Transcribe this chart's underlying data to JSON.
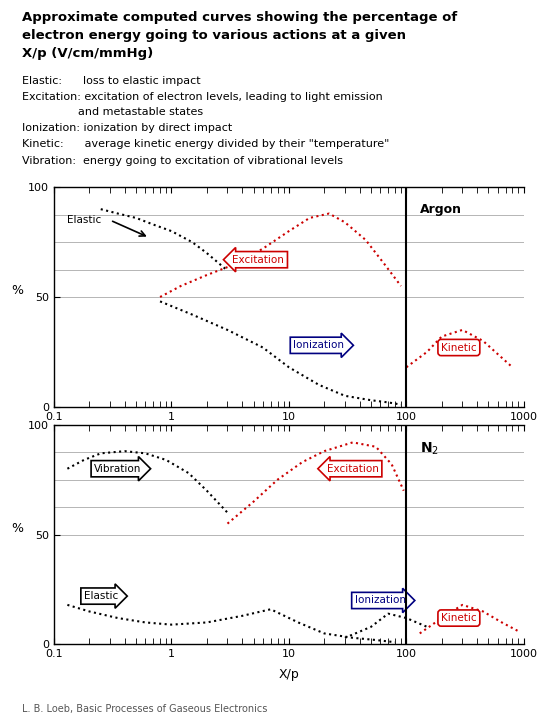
{
  "title_line1": "Approximate computed curves showing the percentage of",
  "title_line2": "electron energy going to various actions at a given",
  "title_line3": "X/p (V/cm/mmHg)",
  "legend_lines": [
    "Elastic:      loss to elastic impact",
    "Excitation: excitation of electron levels, leading to light emission",
    "                and metastable states",
    "Ionization: ionization by direct impact",
    "Kinetic:      average kinetic energy divided by their \"temperature\"",
    "Vibration:  energy going to excitation of vibrational levels"
  ],
  "ylabel": "%",
  "xlabel": "X/p",
  "footer": "L. B. Loeb, Basic Processes of Gaseous Electronics",
  "argon_label": "Argon",
  "n2_label": "N$_2$",
  "bg_color": "#ffffff",
  "black": "#000000",
  "red": "#cc0000",
  "blue": "#000080",
  "gray": "#aaaaaa",
  "argon_elastic_x": [
    0.25,
    0.35,
    0.5,
    0.7,
    1.0,
    1.5,
    2.0,
    3.0
  ],
  "argon_elastic_y": [
    90,
    88,
    86,
    83,
    80,
    75,
    70,
    62
  ],
  "argon_exc_x": [
    0.8,
    1.2,
    2.0,
    3.5,
    6.0,
    10.0,
    15.0,
    22.0,
    30.0,
    45.0,
    65.0,
    90.0
  ],
  "argon_exc_y": [
    50,
    55,
    60,
    65,
    72,
    80,
    86,
    88,
    84,
    76,
    65,
    55
  ],
  "argon_ion_x": [
    0.8,
    1.5,
    3.0,
    6.0,
    10.0,
    18.0,
    30.0,
    50.0,
    70.0,
    90.0
  ],
  "argon_ion_y": [
    48,
    42,
    35,
    27,
    18,
    10,
    5,
    3,
    2,
    1
  ],
  "argon_kin_x": [
    100,
    150,
    200,
    300,
    450,
    600,
    800
  ],
  "argon_kin_y": [
    18,
    25,
    32,
    35,
    30,
    24,
    18
  ],
  "n2_vib_x": [
    0.13,
    0.18,
    0.25,
    0.4,
    0.6,
    0.9,
    1.4,
    2.0,
    3.0
  ],
  "n2_vib_y": [
    80,
    84,
    87,
    88,
    87,
    84,
    78,
    70,
    60
  ],
  "n2_exc_x": [
    3.0,
    5.0,
    8.0,
    13.0,
    20.0,
    35.0,
    55.0,
    75.0,
    95.0
  ],
  "n2_exc_y": [
    55,
    65,
    75,
    83,
    88,
    92,
    90,
    82,
    70
  ],
  "n2_elas_x": [
    0.13,
    0.2,
    0.35,
    0.6,
    1.0,
    2.0,
    4.0,
    7.0,
    12.0,
    20.0,
    35.0,
    55.0,
    80.0
  ],
  "n2_elas_y": [
    18,
    15,
    12,
    10,
    9,
    10,
    13,
    16,
    10,
    5,
    3,
    2,
    1
  ],
  "n2_ion_x": [
    30,
    50,
    70,
    100,
    150
  ],
  "n2_ion_y": [
    3,
    8,
    14,
    12,
    8
  ],
  "n2_kin_x": [
    130,
    200,
    300,
    450,
    650,
    900
  ],
  "n2_kin_y": [
    5,
    12,
    18,
    15,
    10,
    6
  ]
}
